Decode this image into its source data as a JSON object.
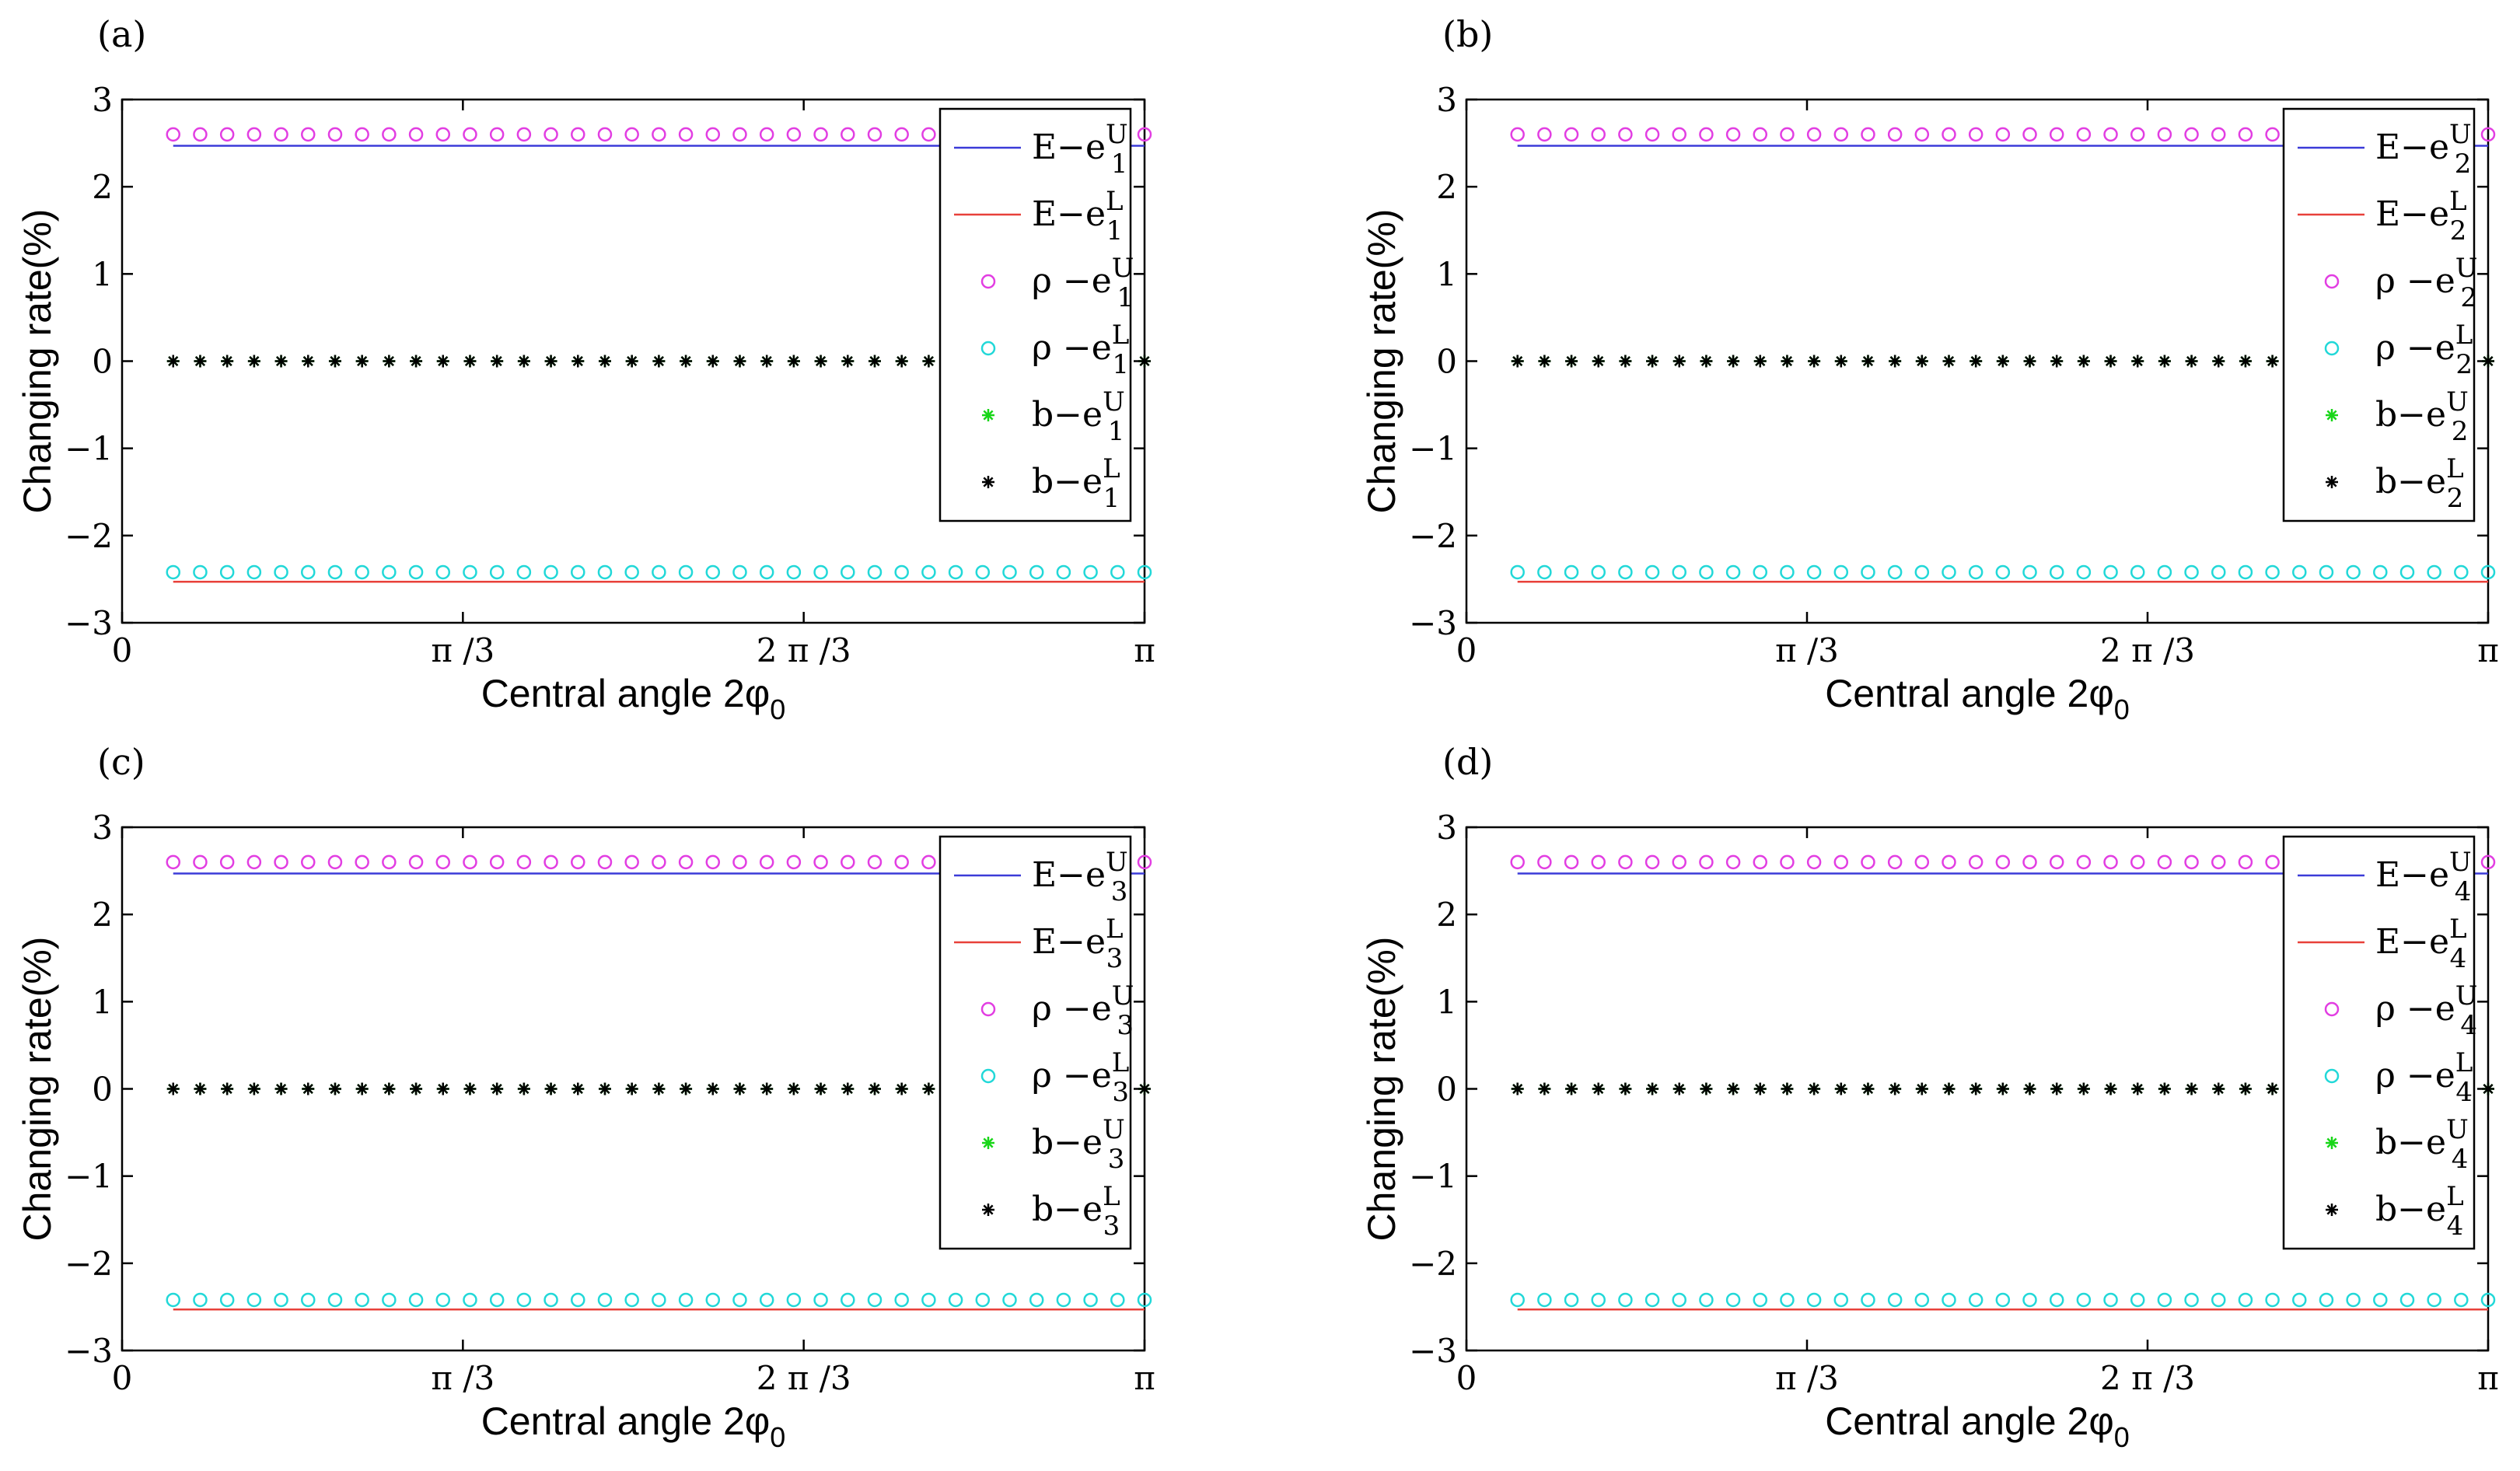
{
  "figure": {
    "ylabel": "Changing rate(%)",
    "xlabel": "Central angle 2φ",
    "xlabel_sub": "0"
  },
  "colors": {
    "E_upper": "#3b3bd8",
    "E_lower": "#e8413a",
    "rho_upper": "#e23ee2",
    "rho_lower": "#22d8d8",
    "b_upper": "#19d619",
    "b_lower": "#000000"
  },
  "chart_data": [
    {
      "panel": "(a)",
      "type": "line",
      "ylim": [
        -3,
        3
      ],
      "yticks": [
        "3",
        "2",
        "1",
        "0",
        "−1",
        "−2",
        "−3"
      ],
      "xticks": [
        "0",
        "π /3",
        "2 π /3",
        "π"
      ],
      "legend_location": "top-right",
      "legend": [
        {
          "label": "E−e",
          "sup": "U",
          "sub": "1",
          "style": "line",
          "color": "#3b3bd8"
        },
        {
          "label": "E−e",
          "sup": "L",
          "sub": "1",
          "style": "line",
          "color": "#e8413a"
        },
        {
          "label": "ρ −e",
          "sup": "U",
          "sub": "1",
          "style": "circle",
          "color": "#e23ee2"
        },
        {
          "label": "ρ −e",
          "sup": "L",
          "sub": "1",
          "style": "circle",
          "color": "#22d8d8"
        },
        {
          "label": "b−e",
          "sup": "U",
          "sub": "1",
          "style": "star",
          "color": "#19d619"
        },
        {
          "label": "b−e",
          "sup": "L",
          "sub": "1",
          "style": "star",
          "color": "#000000"
        }
      ],
      "series": [
        {
          "name": "E-eU",
          "style": "line",
          "x_range": [
            0.05,
            1.0
          ],
          "value": 2.47
        },
        {
          "name": "E-eL",
          "style": "line",
          "x_range": [
            0.05,
            1.0
          ],
          "value": -2.53
        },
        {
          "name": "rho-eU",
          "style": "circle",
          "x_range": [
            0.05,
            1.0
          ],
          "count": 37,
          "value": 2.6
        },
        {
          "name": "rho-eL",
          "style": "circle",
          "x_range": [
            0.05,
            1.0
          ],
          "count": 37,
          "value": -2.42
        },
        {
          "name": "b-eU",
          "style": "star",
          "x_range": [
            0.05,
            1.0
          ],
          "count": 37,
          "value": 0
        },
        {
          "name": "b-eL",
          "style": "star",
          "x_range": [
            0.05,
            1.0
          ],
          "count": 37,
          "value": 0
        }
      ]
    },
    {
      "panel": "(b)",
      "type": "line",
      "ylim": [
        -3,
        3
      ],
      "yticks": [
        "3",
        "2",
        "1",
        "0",
        "−1",
        "−2",
        "−3"
      ],
      "xticks": [
        "0",
        "π /3",
        "2 π /3",
        "π"
      ],
      "legend_location": "top-right",
      "legend": [
        {
          "label": "E−e",
          "sup": "U",
          "sub": "2",
          "style": "line",
          "color": "#3b3bd8"
        },
        {
          "label": "E−e",
          "sup": "L",
          "sub": "2",
          "style": "line",
          "color": "#e8413a"
        },
        {
          "label": "ρ −e",
          "sup": "U",
          "sub": "2",
          "style": "circle",
          "color": "#e23ee2"
        },
        {
          "label": "ρ −e",
          "sup": "L",
          "sub": "2",
          "style": "circle",
          "color": "#22d8d8"
        },
        {
          "label": "b−e",
          "sup": "U",
          "sub": "2",
          "style": "star",
          "color": "#19d619"
        },
        {
          "label": "b−e",
          "sup": "L",
          "sub": "2",
          "style": "star",
          "color": "#000000"
        }
      ],
      "series": [
        {
          "name": "E-eU",
          "style": "line",
          "x_range": [
            0.05,
            1.0
          ],
          "value": 2.47
        },
        {
          "name": "E-eL",
          "style": "line",
          "x_range": [
            0.05,
            1.0
          ],
          "value": -2.53
        },
        {
          "name": "rho-eU",
          "style": "circle",
          "x_range": [
            0.05,
            1.0
          ],
          "count": 37,
          "value": 2.6
        },
        {
          "name": "rho-eL",
          "style": "circle",
          "x_range": [
            0.05,
            1.0
          ],
          "count": 37,
          "value": -2.42
        },
        {
          "name": "b-eU",
          "style": "star",
          "x_range": [
            0.05,
            1.0
          ],
          "count": 37,
          "value": 0
        },
        {
          "name": "b-eL",
          "style": "star",
          "x_range": [
            0.05,
            1.0
          ],
          "count": 37,
          "value": 0
        }
      ]
    },
    {
      "panel": "(c)",
      "type": "line",
      "ylim": [
        -3,
        3
      ],
      "yticks": [
        "3",
        "2",
        "1",
        "0",
        "−1",
        "−2",
        "−3"
      ],
      "xticks": [
        "0",
        "π /3",
        "2 π /3",
        "π"
      ],
      "legend_location": "top-right",
      "legend": [
        {
          "label": "E−e",
          "sup": "U",
          "sub": "3",
          "style": "line",
          "color": "#3b3bd8"
        },
        {
          "label": "E−e",
          "sup": "L",
          "sub": "3",
          "style": "line",
          "color": "#e8413a"
        },
        {
          "label": "ρ −e",
          "sup": "U",
          "sub": "3",
          "style": "circle",
          "color": "#e23ee2"
        },
        {
          "label": "ρ −e",
          "sup": "L",
          "sub": "3",
          "style": "circle",
          "color": "#22d8d8"
        },
        {
          "label": "b−e",
          "sup": "U",
          "sub": "3",
          "style": "star",
          "color": "#19d619"
        },
        {
          "label": "b−e",
          "sup": "L",
          "sub": "3",
          "style": "star",
          "color": "#000000"
        }
      ],
      "series": [
        {
          "name": "E-eU",
          "style": "line",
          "x_range": [
            0.05,
            1.0
          ],
          "value": 2.47
        },
        {
          "name": "E-eL",
          "style": "line",
          "x_range": [
            0.05,
            1.0
          ],
          "value": -2.53
        },
        {
          "name": "rho-eU",
          "style": "circle",
          "x_range": [
            0.05,
            1.0
          ],
          "count": 37,
          "value": 2.6
        },
        {
          "name": "rho-eL",
          "style": "circle",
          "x_range": [
            0.05,
            1.0
          ],
          "count": 37,
          "value": -2.42
        },
        {
          "name": "b-eU",
          "style": "star",
          "x_range": [
            0.05,
            1.0
          ],
          "count": 37,
          "value": 0
        },
        {
          "name": "b-eL",
          "style": "star",
          "x_range": [
            0.05,
            1.0
          ],
          "count": 37,
          "value": 0
        }
      ]
    },
    {
      "panel": "(d)",
      "type": "line",
      "ylim": [
        -3,
        3
      ],
      "yticks": [
        "3",
        "2",
        "1",
        "0",
        "−1",
        "−2",
        "−3"
      ],
      "xticks": [
        "0",
        "π /3",
        "2 π /3",
        "π"
      ],
      "legend_location": "top-right",
      "legend": [
        {
          "label": "E−e",
          "sup": "U",
          "sub": "4",
          "style": "line",
          "color": "#3b3bd8"
        },
        {
          "label": "E−e",
          "sup": "L",
          "sub": "4",
          "style": "line",
          "color": "#e8413a"
        },
        {
          "label": "ρ −e",
          "sup": "U",
          "sub": "4",
          "style": "circle",
          "color": "#e23ee2"
        },
        {
          "label": "ρ −e",
          "sup": "L",
          "sub": "4",
          "style": "circle",
          "color": "#22d8d8"
        },
        {
          "label": "b−e",
          "sup": "U",
          "sub": "4",
          "style": "star",
          "color": "#19d619"
        },
        {
          "label": "b−e",
          "sup": "L",
          "sub": "4",
          "style": "star",
          "color": "#000000"
        }
      ],
      "series": [
        {
          "name": "E-eU",
          "style": "line",
          "x_range": [
            0.05,
            1.0
          ],
          "value": 2.47
        },
        {
          "name": "E-eL",
          "style": "line",
          "x_range": [
            0.05,
            1.0
          ],
          "value": -2.53
        },
        {
          "name": "rho-eU",
          "style": "circle",
          "x_range": [
            0.05,
            1.0
          ],
          "count": 37,
          "value": 2.6
        },
        {
          "name": "rho-eL",
          "style": "circle",
          "x_range": [
            0.05,
            1.0
          ],
          "count": 37,
          "value": -2.42
        },
        {
          "name": "b-eU",
          "style": "star",
          "x_range": [
            0.05,
            1.0
          ],
          "count": 37,
          "value": 0
        },
        {
          "name": "b-eL",
          "style": "star",
          "x_range": [
            0.05,
            1.0
          ],
          "count": 37,
          "value": 0
        }
      ]
    }
  ]
}
